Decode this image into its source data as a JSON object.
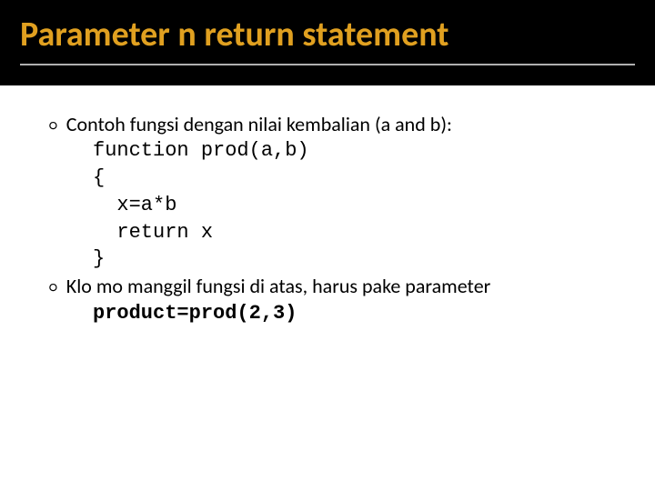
{
  "colors": {
    "header_bg": "#000000",
    "title_color": "#e0a020",
    "rule_color": "#b0b0b0",
    "body_bg": "#ffffff",
    "text_color": "#000000"
  },
  "typography": {
    "title_fontsize": 38,
    "title_weight": 700,
    "body_fontsize": 22,
    "body_font": "Calibri",
    "code_font": "Courier New"
  },
  "slide": {
    "title": "Parameter n return statement",
    "bullets": [
      {
        "text": "Contoh fungsi dengan nilai kembalian  (a and b):",
        "code": "function prod(a,b)\n{\n  x=a*b\n  return x\n}"
      },
      {
        "text": "Klo mo manggil fungsi di atas, harus pake parameter",
        "code_bold": "product=prod(2,3)"
      }
    ]
  }
}
